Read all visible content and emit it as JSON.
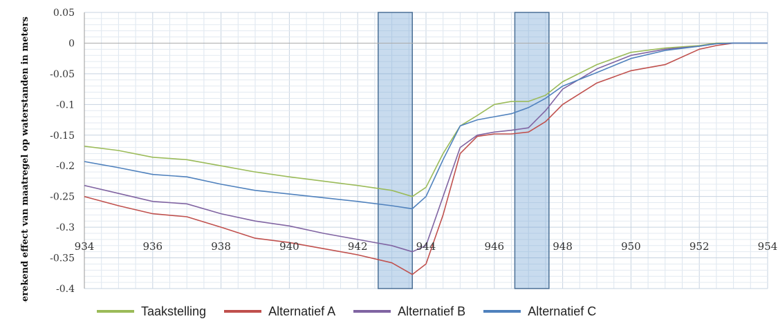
{
  "chart_data": {
    "type": "line",
    "title": "",
    "xlabel": "",
    "ylabel": "Berekend effect van maatregel op waterstanden in meters",
    "xlim": [
      934,
      954
    ],
    "ylim": [
      -0.4,
      0.05
    ],
    "x_tick_labels": [
      "934",
      "936",
      "938",
      "940",
      "942",
      "944",
      "946",
      "948",
      "950",
      "952",
      "954"
    ],
    "y_tick_labels": [
      "0.05",
      "0",
      "-0.05",
      "-0.1",
      "-0.15",
      "-0.2",
      "-0.25",
      "-0.3",
      "-0.35",
      "-0.4"
    ],
    "grid": true,
    "legend_position": "bottom",
    "highlight_bands": [
      {
        "x_start": 942.6,
        "x_end": 943.6
      },
      {
        "x_start": 946.6,
        "x_end": 947.6
      }
    ],
    "series": [
      {
        "name": "Taakstelling",
        "color": "#9bbb59",
        "x": [
          934,
          935,
          936,
          937,
          938,
          939,
          940,
          941,
          942,
          943,
          943.6,
          944,
          944.5,
          945,
          945.5,
          946,
          946.5,
          947,
          947.5,
          948,
          949,
          950,
          951,
          952,
          952.5,
          953,
          954
        ],
        "y": [
          -0.168,
          -0.175,
          -0.186,
          -0.19,
          -0.2,
          -0.21,
          -0.218,
          -0.225,
          -0.232,
          -0.24,
          -0.25,
          -0.235,
          -0.18,
          -0.135,
          -0.118,
          -0.1,
          -0.095,
          -0.095,
          -0.085,
          -0.063,
          -0.035,
          -0.015,
          -0.008,
          -0.004,
          0,
          0,
          0
        ]
      },
      {
        "name": "Alternatief A",
        "color": "#c0504d",
        "x": [
          934,
          935,
          936,
          937,
          938,
          939,
          940,
          941,
          942,
          943,
          943.6,
          944,
          944.5,
          945,
          945.5,
          946,
          946.5,
          947,
          947.5,
          948,
          949,
          950,
          951,
          952,
          952.5,
          953,
          954
        ],
        "y": [
          -0.25,
          -0.265,
          -0.278,
          -0.283,
          -0.3,
          -0.318,
          -0.325,
          -0.335,
          -0.345,
          -0.358,
          -0.377,
          -0.36,
          -0.28,
          -0.18,
          -0.152,
          -0.148,
          -0.148,
          -0.145,
          -0.128,
          -0.1,
          -0.065,
          -0.045,
          -0.035,
          -0.01,
          -0.004,
          0,
          0
        ]
      },
      {
        "name": "Alternatief B",
        "color": "#8064a2",
        "x": [
          934,
          935,
          936,
          937,
          938,
          939,
          940,
          941,
          942,
          943,
          943.6,
          944,
          944.5,
          945,
          945.5,
          946,
          946.5,
          947,
          947.5,
          948,
          949,
          950,
          951,
          952,
          952.5,
          953,
          954
        ],
        "y": [
          -0.232,
          -0.245,
          -0.258,
          -0.262,
          -0.278,
          -0.29,
          -0.298,
          -0.31,
          -0.32,
          -0.33,
          -0.34,
          -0.33,
          -0.25,
          -0.17,
          -0.15,
          -0.145,
          -0.142,
          -0.138,
          -0.11,
          -0.075,
          -0.042,
          -0.02,
          -0.01,
          -0.005,
          -0.001,
          0,
          0
        ]
      },
      {
        "name": "Alternatief C",
        "color": "#4f81bd",
        "x": [
          934,
          935,
          936,
          937,
          938,
          939,
          940,
          941,
          942,
          943,
          943.6,
          944,
          944.5,
          945,
          945.5,
          946,
          946.5,
          947,
          947.5,
          948,
          949,
          950,
          951,
          952,
          952.5,
          953,
          954
        ],
        "y": [
          -0.193,
          -0.203,
          -0.214,
          -0.218,
          -0.23,
          -0.24,
          -0.246,
          -0.252,
          -0.258,
          -0.265,
          -0.27,
          -0.25,
          -0.19,
          -0.135,
          -0.125,
          -0.12,
          -0.115,
          -0.105,
          -0.09,
          -0.07,
          -0.048,
          -0.025,
          -0.012,
          -0.005,
          -0.001,
          0,
          0
        ]
      }
    ]
  }
}
